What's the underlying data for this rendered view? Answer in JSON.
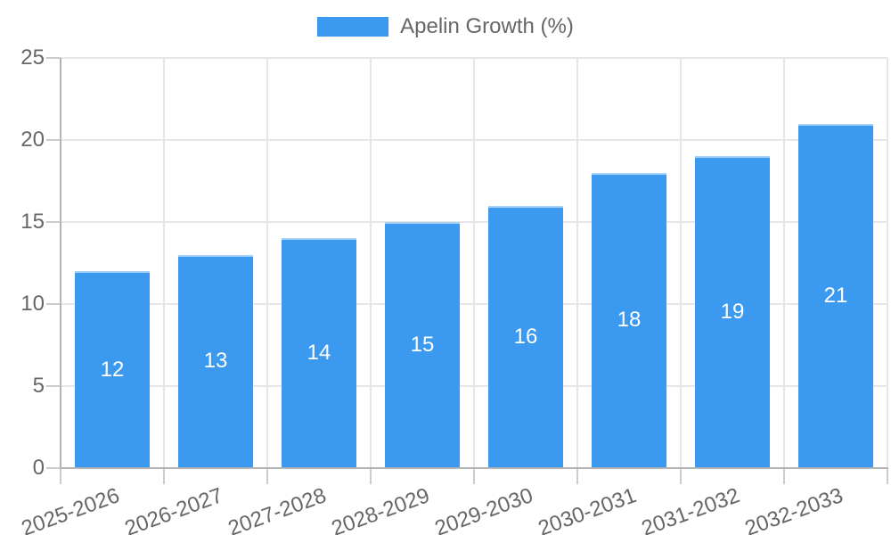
{
  "legend": {
    "items": [
      {
        "label": "Apelin Growth (%)",
        "color": "#3B99F0"
      }
    ]
  },
  "chart_data": {
    "type": "bar",
    "title": "",
    "xlabel": "",
    "ylabel": "",
    "categories": [
      "2025-2026",
      "2026-2027",
      "2027-2028",
      "2028-2029",
      "2029-2030",
      "2030-2031",
      "2031-2032",
      "2032-2033"
    ],
    "series": [
      {
        "name": "Apelin Growth (%)",
        "color": "#3B99F0",
        "values": [
          12,
          13,
          14,
          15,
          16,
          18,
          19,
          21
        ]
      }
    ],
    "bar_labels": [
      12,
      13,
      14,
      15,
      16,
      18,
      19,
      21
    ],
    "ylim": [
      0,
      25
    ],
    "yticks": [
      0,
      5,
      10,
      15,
      20,
      25
    ],
    "grid": true,
    "legend_position": "top",
    "x_tick_rotation_deg": -20,
    "bar_label_color": "#ffffff",
    "colors": {
      "bar": "#3B99F0",
      "grid": "#e6e6e6",
      "axis": "#b3b3b3",
      "tick": "#cccccc",
      "text": "#666666",
      "background": "#ffffff"
    }
  }
}
